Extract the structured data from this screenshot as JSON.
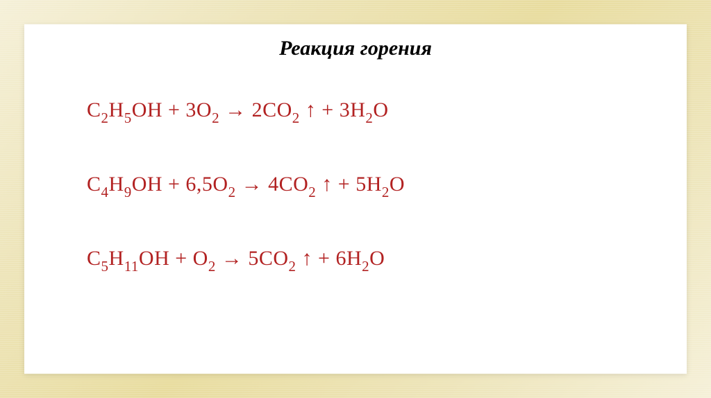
{
  "slide": {
    "title": "Реакция горения",
    "title_fontsize": 30,
    "title_color": "#000000",
    "title_style": "bold-italic",
    "equation_color": "#b22222",
    "equation_fontsize": 30,
    "background_color": "#ffffff",
    "outer_background": "#ede4b8",
    "equations": [
      {
        "text": "C₂H₅OH + 3O₂ → 2CO₂ ↑ + 3H₂O",
        "html": "C<sub>2</sub>H<sub>5</sub>OH + 3O<sub>2</sub> → 2CO<sub>2</sub> ↑ + 3H<sub>2</sub>O"
      },
      {
        "text": "C₄H₉OH + 6,5O₂ → 4CO₂ ↑ + 5H₂O",
        "html": "C<sub>4</sub>H<sub>9</sub>OH + 6,5O<sub>2</sub> → 4CO<sub>2</sub> ↑ + 5H<sub>2</sub>O"
      },
      {
        "text": "C₅H₁₁OH + O₂ → 5CO₂ ↑ + 6H₂O",
        "html": "C<sub>5</sub>H<sub>11</sub>OH + O<sub>2</sub> → 5CO<sub>2</sub> ↑ + 6H<sub>2</sub>O"
      }
    ]
  }
}
